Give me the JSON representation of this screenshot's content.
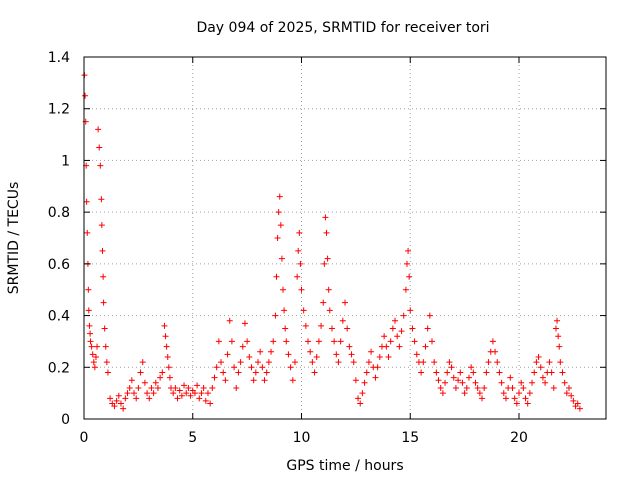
{
  "chart_data": {
    "type": "scatter",
    "title": "Day 094 of 2025, SRMTID for receiver tori",
    "xlabel": "GPS time / hours",
    "ylabel": "SRMTID / TECUs",
    "xlim": [
      0,
      24
    ],
    "ylim": [
      0,
      1.4
    ],
    "grid": true,
    "marker": "+",
    "x_ticks": [
      0,
      5,
      10,
      15,
      20
    ],
    "y_ticks": [
      0,
      0.2,
      0.4,
      0.6,
      0.8,
      1,
      1.2,
      1.4
    ],
    "x_tick_labels": [
      "0",
      "5",
      "10",
      "15",
      "20"
    ],
    "y_tick_labels": [
      "0",
      "0.2",
      "0.4",
      "0.6",
      "0.8",
      "1",
      "1.2",
      "1.4"
    ],
    "series": [
      {
        "name": "SRMTID",
        "color": "#ff0000",
        "points": [
          [
            0.02,
            1.33
          ],
          [
            0.05,
            1.25
          ],
          [
            0.08,
            1.15
          ],
          [
            0.1,
            0.98
          ],
          [
            0.12,
            0.84
          ],
          [
            0.15,
            0.72
          ],
          [
            0.18,
            0.6
          ],
          [
            0.2,
            0.5
          ],
          [
            0.22,
            0.42
          ],
          [
            0.25,
            0.36
          ],
          [
            0.28,
            0.33
          ],
          [
            0.3,
            0.3
          ],
          [
            0.35,
            0.28
          ],
          [
            0.4,
            0.25
          ],
          [
            0.45,
            0.22
          ],
          [
            0.5,
            0.2
          ],
          [
            0.55,
            0.24
          ],
          [
            0.6,
            0.28
          ],
          [
            0.65,
            1.12
          ],
          [
            0.7,
            1.05
          ],
          [
            0.75,
            0.98
          ],
          [
            0.8,
            0.85
          ],
          [
            0.82,
            0.75
          ],
          [
            0.85,
            0.65
          ],
          [
            0.88,
            0.55
          ],
          [
            0.9,
            0.45
          ],
          [
            0.95,
            0.35
          ],
          [
            1.0,
            0.28
          ],
          [
            1.05,
            0.22
          ],
          [
            1.1,
            0.18
          ],
          [
            1.2,
            0.08
          ],
          [
            1.3,
            0.06
          ],
          [
            1.4,
            0.05
          ],
          [
            1.5,
            0.07
          ],
          [
            1.6,
            0.09
          ],
          [
            1.7,
            0.06
          ],
          [
            1.8,
            0.04
          ],
          [
            1.9,
            0.08
          ],
          [
            2.0,
            0.1
          ],
          [
            2.1,
            0.12
          ],
          [
            2.2,
            0.15
          ],
          [
            2.3,
            0.1
          ],
          [
            2.4,
            0.08
          ],
          [
            2.5,
            0.12
          ],
          [
            2.6,
            0.18
          ],
          [
            2.7,
            0.22
          ],
          [
            2.8,
            0.14
          ],
          [
            2.9,
            0.1
          ],
          [
            3.0,
            0.08
          ],
          [
            3.1,
            0.12
          ],
          [
            3.2,
            0.1
          ],
          [
            3.3,
            0.14
          ],
          [
            3.4,
            0.12
          ],
          [
            3.5,
            0.16
          ],
          [
            3.6,
            0.18
          ],
          [
            3.7,
            0.36
          ],
          [
            3.75,
            0.32
          ],
          [
            3.8,
            0.28
          ],
          [
            3.85,
            0.24
          ],
          [
            3.9,
            0.2
          ],
          [
            3.95,
            0.16
          ],
          [
            4.0,
            0.12
          ],
          [
            4.1,
            0.1
          ],
          [
            4.2,
            0.12
          ],
          [
            4.3,
            0.08
          ],
          [
            4.4,
            0.11
          ],
          [
            4.5,
            0.09
          ],
          [
            4.6,
            0.13
          ],
          [
            4.7,
            0.1
          ],
          [
            4.8,
            0.12
          ],
          [
            4.9,
            0.09
          ],
          [
            5.0,
            0.11
          ],
          [
            5.1,
            0.1
          ],
          [
            5.2,
            0.13
          ],
          [
            5.3,
            0.08
          ],
          [
            5.4,
            0.1
          ],
          [
            5.5,
            0.12
          ],
          [
            5.6,
            0.07
          ],
          [
            5.7,
            0.1
          ],
          [
            5.8,
            0.06
          ],
          [
            5.9,
            0.12
          ],
          [
            6.0,
            0.16
          ],
          [
            6.1,
            0.2
          ],
          [
            6.2,
            0.3
          ],
          [
            6.3,
            0.22
          ],
          [
            6.4,
            0.18
          ],
          [
            6.5,
            0.15
          ],
          [
            6.6,
            0.25
          ],
          [
            6.7,
            0.38
          ],
          [
            6.8,
            0.3
          ],
          [
            6.9,
            0.2
          ],
          [
            7.0,
            0.12
          ],
          [
            7.1,
            0.18
          ],
          [
            7.2,
            0.22
          ],
          [
            7.3,
            0.28
          ],
          [
            7.4,
            0.37
          ],
          [
            7.5,
            0.3
          ],
          [
            7.6,
            0.24
          ],
          [
            7.7,
            0.2
          ],
          [
            7.8,
            0.15
          ],
          [
            7.9,
            0.18
          ],
          [
            8.0,
            0.22
          ],
          [
            8.1,
            0.26
          ],
          [
            8.2,
            0.2
          ],
          [
            8.3,
            0.15
          ],
          [
            8.4,
            0.18
          ],
          [
            8.5,
            0.22
          ],
          [
            8.6,
            0.26
          ],
          [
            8.7,
            0.3
          ],
          [
            8.8,
            0.4
          ],
          [
            8.85,
            0.55
          ],
          [
            8.9,
            0.7
          ],
          [
            8.95,
            0.8
          ],
          [
            9.0,
            0.86
          ],
          [
            9.05,
            0.75
          ],
          [
            9.1,
            0.62
          ],
          [
            9.15,
            0.5
          ],
          [
            9.2,
            0.42
          ],
          [
            9.25,
            0.35
          ],
          [
            9.3,
            0.3
          ],
          [
            9.4,
            0.25
          ],
          [
            9.5,
            0.2
          ],
          [
            9.6,
            0.15
          ],
          [
            9.7,
            0.22
          ],
          [
            9.8,
            0.55
          ],
          [
            9.85,
            0.65
          ],
          [
            9.9,
            0.72
          ],
          [
            9.95,
            0.6
          ],
          [
            10.0,
            0.5
          ],
          [
            10.1,
            0.42
          ],
          [
            10.2,
            0.36
          ],
          [
            10.3,
            0.3
          ],
          [
            10.4,
            0.26
          ],
          [
            10.5,
            0.22
          ],
          [
            10.6,
            0.18
          ],
          [
            10.7,
            0.24
          ],
          [
            10.8,
            0.3
          ],
          [
            10.9,
            0.36
          ],
          [
            11.0,
            0.45
          ],
          [
            11.05,
            0.6
          ],
          [
            11.1,
            0.78
          ],
          [
            11.15,
            0.72
          ],
          [
            11.2,
            0.62
          ],
          [
            11.25,
            0.5
          ],
          [
            11.3,
            0.42
          ],
          [
            11.4,
            0.35
          ],
          [
            11.5,
            0.3
          ],
          [
            11.6,
            0.25
          ],
          [
            11.7,
            0.22
          ],
          [
            11.8,
            0.3
          ],
          [
            11.9,
            0.38
          ],
          [
            12.0,
            0.45
          ],
          [
            12.1,
            0.35
          ],
          [
            12.2,
            0.28
          ],
          [
            12.3,
            0.25
          ],
          [
            12.4,
            0.22
          ],
          [
            12.5,
            0.15
          ],
          [
            12.6,
            0.08
          ],
          [
            12.7,
            0.06
          ],
          [
            12.8,
            0.1
          ],
          [
            12.9,
            0.14
          ],
          [
            13.0,
            0.18
          ],
          [
            13.1,
            0.22
          ],
          [
            13.2,
            0.26
          ],
          [
            13.3,
            0.2
          ],
          [
            13.4,
            0.16
          ],
          [
            13.5,
            0.2
          ],
          [
            13.6,
            0.24
          ],
          [
            13.7,
            0.28
          ],
          [
            13.8,
            0.32
          ],
          [
            13.9,
            0.28
          ],
          [
            14.0,
            0.24
          ],
          [
            14.1,
            0.3
          ],
          [
            14.2,
            0.35
          ],
          [
            14.3,
            0.38
          ],
          [
            14.4,
            0.32
          ],
          [
            14.5,
            0.28
          ],
          [
            14.6,
            0.34
          ],
          [
            14.7,
            0.4
          ],
          [
            14.8,
            0.5
          ],
          [
            14.85,
            0.6
          ],
          [
            14.9,
            0.65
          ],
          [
            14.95,
            0.55
          ],
          [
            15.0,
            0.42
          ],
          [
            15.1,
            0.35
          ],
          [
            15.2,
            0.3
          ],
          [
            15.3,
            0.25
          ],
          [
            15.4,
            0.22
          ],
          [
            15.5,
            0.18
          ],
          [
            15.6,
            0.22
          ],
          [
            15.7,
            0.28
          ],
          [
            15.8,
            0.35
          ],
          [
            15.9,
            0.4
          ],
          [
            16.0,
            0.3
          ],
          [
            16.1,
            0.22
          ],
          [
            16.2,
            0.18
          ],
          [
            16.3,
            0.15
          ],
          [
            16.4,
            0.12
          ],
          [
            16.5,
            0.1
          ],
          [
            16.6,
            0.14
          ],
          [
            16.7,
            0.18
          ],
          [
            16.8,
            0.22
          ],
          [
            16.9,
            0.2
          ],
          [
            17.0,
            0.16
          ],
          [
            17.1,
            0.12
          ],
          [
            17.2,
            0.15
          ],
          [
            17.3,
            0.18
          ],
          [
            17.4,
            0.14
          ],
          [
            17.5,
            0.1
          ],
          [
            17.6,
            0.12
          ],
          [
            17.7,
            0.16
          ],
          [
            17.8,
            0.2
          ],
          [
            17.9,
            0.18
          ],
          [
            18.0,
            0.14
          ],
          [
            18.1,
            0.12
          ],
          [
            18.2,
            0.1
          ],
          [
            18.3,
            0.08
          ],
          [
            18.4,
            0.12
          ],
          [
            18.5,
            0.18
          ],
          [
            18.6,
            0.22
          ],
          [
            18.7,
            0.26
          ],
          [
            18.8,
            0.3
          ],
          [
            18.9,
            0.26
          ],
          [
            19.0,
            0.22
          ],
          [
            19.1,
            0.18
          ],
          [
            19.2,
            0.14
          ],
          [
            19.3,
            0.1
          ],
          [
            19.4,
            0.08
          ],
          [
            19.5,
            0.12
          ],
          [
            19.6,
            0.16
          ],
          [
            19.7,
            0.12
          ],
          [
            19.8,
            0.08
          ],
          [
            19.9,
            0.06
          ],
          [
            20.0,
            0.1
          ],
          [
            20.1,
            0.14
          ],
          [
            20.2,
            0.12
          ],
          [
            20.3,
            0.08
          ],
          [
            20.4,
            0.06
          ],
          [
            20.5,
            0.1
          ],
          [
            20.6,
            0.14
          ],
          [
            20.7,
            0.18
          ],
          [
            20.8,
            0.22
          ],
          [
            20.9,
            0.24
          ],
          [
            21.0,
            0.2
          ],
          [
            21.1,
            0.16
          ],
          [
            21.2,
            0.14
          ],
          [
            21.3,
            0.18
          ],
          [
            21.4,
            0.22
          ],
          [
            21.5,
            0.18
          ],
          [
            21.6,
            0.12
          ],
          [
            21.7,
            0.35
          ],
          [
            21.75,
            0.38
          ],
          [
            21.8,
            0.32
          ],
          [
            21.85,
            0.28
          ],
          [
            21.9,
            0.22
          ],
          [
            22.0,
            0.18
          ],
          [
            22.1,
            0.14
          ],
          [
            22.2,
            0.1
          ],
          [
            22.3,
            0.12
          ],
          [
            22.4,
            0.09
          ],
          [
            22.5,
            0.07
          ],
          [
            22.6,
            0.05
          ],
          [
            22.7,
            0.06
          ],
          [
            22.8,
            0.04
          ]
        ]
      }
    ]
  }
}
